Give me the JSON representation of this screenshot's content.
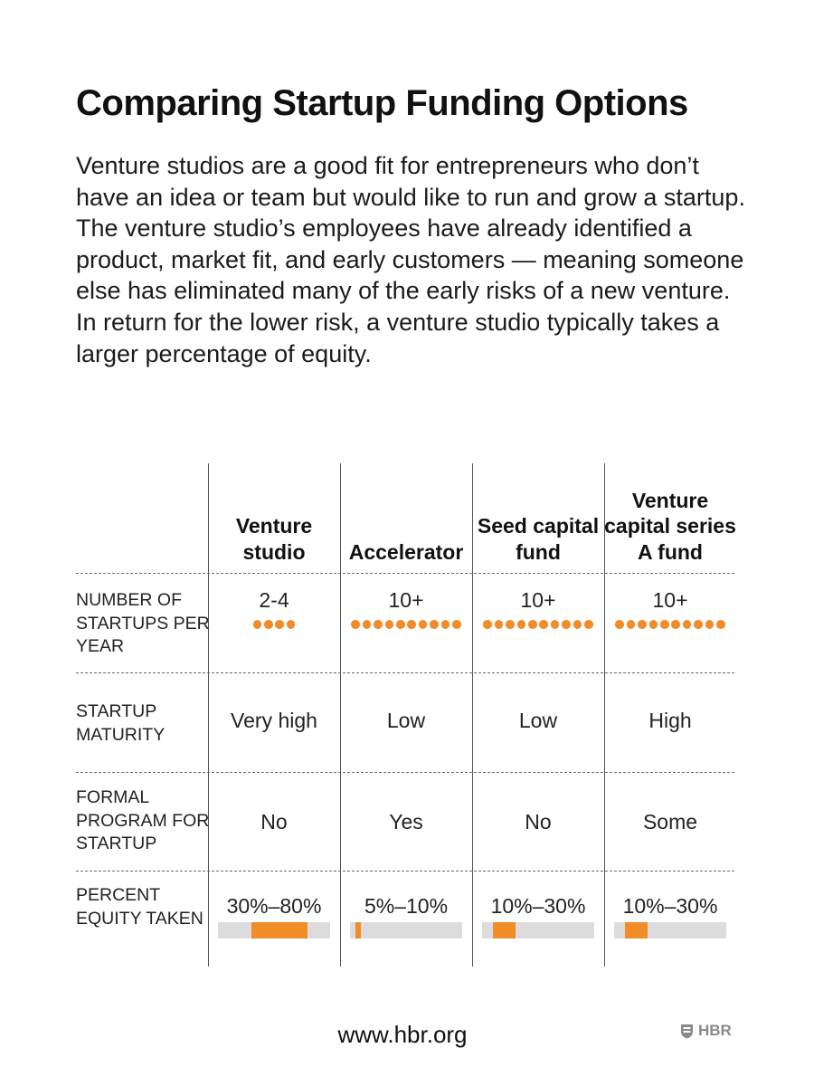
{
  "title": "Comparing Startup Funding Options",
  "intro": "Venture studios are a good fit for entrepreneurs who don’t have an idea or team but would like to run and grow a startup. The venture studio’s employees have already identified a product, market fit, and early customers — meaning someone else has eliminated many of the early risks of a new venture. In return for the lower risk, a venture studio typically takes a larger percentage of equity.",
  "columns": [
    {
      "label": "Venture studio"
    },
    {
      "label": "Accelerator"
    },
    {
      "label": "Seed capital fund"
    },
    {
      "label": "Venture capital series A fund"
    }
  ],
  "rows": {
    "startups_per_year": {
      "label": "Number of startups per year",
      "cells": [
        {
          "text": "2-4",
          "dots": 4
        },
        {
          "text": "10+",
          "dots": 10
        },
        {
          "text": "10+",
          "dots": 10
        },
        {
          "text": "10+",
          "dots": 10
        }
      ]
    },
    "maturity": {
      "label": "Startup maturity",
      "cells": [
        "Very high",
        "Low",
        "Low",
        "High"
      ]
    },
    "formal_program": {
      "label": "Formal program for startup",
      "cells": [
        "No",
        "Yes",
        "No",
        "Some"
      ]
    },
    "equity": {
      "label": "Percent equity taken",
      "cells": [
        {
          "text": "30%–80%",
          "min_pct": 30,
          "max_pct": 80
        },
        {
          "text": "5%–10%",
          "min_pct": 5,
          "max_pct": 10
        },
        {
          "text": "10%–30%",
          "min_pct": 10,
          "max_pct": 30
        },
        {
          "text": "10%–30%",
          "min_pct": 10,
          "max_pct": 30
        }
      ]
    }
  },
  "colors": {
    "accent": "#f28c28",
    "bar_track": "#dcdcdc",
    "logo": "#8a8a8a"
  },
  "footer": {
    "url": "www.hbr.org",
    "logo_text": "HBR",
    "logo_icon": "shield-icon"
  }
}
